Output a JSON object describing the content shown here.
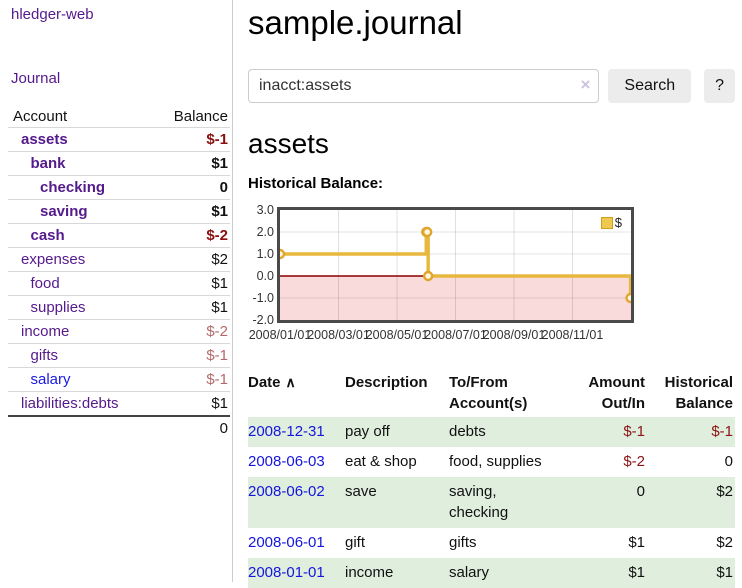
{
  "app": {
    "brand": "hledger-web",
    "nav_journal": "Journal"
  },
  "colors": {
    "link_purple": "#551a8b",
    "link_blue": "#1515dd",
    "negative_strong": "#8b0f0f",
    "negative_muted": "#b36a6a",
    "row_stripe_green": "#dfeedd",
    "chart_line_gold": "#e8b83e",
    "chart_zero_line": "#8b0000",
    "chart_negative_region": "#f9dbdb"
  },
  "sidebar": {
    "header": {
      "account": "Account",
      "balance": "Balance"
    },
    "accounts": [
      {
        "name": "assets",
        "balance": "$-1",
        "depth": 0,
        "bold": true,
        "neg": "strong"
      },
      {
        "name": "bank",
        "balance": "$1",
        "depth": 1,
        "bold": true,
        "neg": "none"
      },
      {
        "name": "checking",
        "balance": "0",
        "depth": 2,
        "bold": true,
        "neg": "none"
      },
      {
        "name": "saving",
        "balance": "$1",
        "depth": 2,
        "bold": true,
        "neg": "none"
      },
      {
        "name": "cash",
        "balance": "$-2",
        "depth": 1,
        "bold": true,
        "neg": "strong"
      },
      {
        "name": "expenses",
        "balance": "$2",
        "depth": 0,
        "bold": false,
        "neg": "none"
      },
      {
        "name": "food",
        "balance": "$1",
        "depth": 1,
        "bold": false,
        "neg": "none"
      },
      {
        "name": "supplies",
        "balance": "$1",
        "depth": 1,
        "bold": false,
        "neg": "none"
      },
      {
        "name": "income",
        "balance": "$-2",
        "depth": 0,
        "bold": false,
        "neg": "muted"
      },
      {
        "name": "gifts",
        "balance": "$-1",
        "depth": 1,
        "bold": false,
        "neg": "muted"
      },
      {
        "name": "salary",
        "balance": "$-1",
        "depth": 1,
        "bold": false,
        "neg": "muted",
        "blue": true
      },
      {
        "name": "liabilities:debts",
        "balance": "$1",
        "depth": 0,
        "bold": false,
        "neg": "none"
      }
    ],
    "total": "0"
  },
  "header": {
    "title": "sample.journal"
  },
  "search": {
    "value": "inacct:assets",
    "clear_icon": "×",
    "button": "Search",
    "help": "?"
  },
  "register": {
    "heading": "assets",
    "chart_label": "Historical Balance:"
  },
  "chart_data": {
    "type": "line",
    "step": true,
    "title": "Historical Balance",
    "series": [
      {
        "name": "$",
        "x": [
          "2008-01-01",
          "2008-06-01",
          "2008-06-02",
          "2008-06-03",
          "2008-12-31"
        ],
        "values": [
          1,
          2,
          2,
          0,
          -1
        ]
      }
    ],
    "x_tick_labels": [
      "2008/01/01",
      "2008/03/01",
      "2008/05/01",
      "2008/07/01",
      "2008/09/01",
      "2008/11/01"
    ],
    "x_tick_months": [
      0,
      2,
      4,
      6,
      8,
      10
    ],
    "y_tick_labels": [
      "3.0",
      "2.0",
      "1.0",
      "0.0",
      "-1.0",
      "-2.0"
    ],
    "y_ticks": [
      3,
      2,
      1,
      0,
      -1,
      -2
    ],
    "ylim": [
      -2,
      3
    ],
    "xlim_months": [
      0,
      12
    ],
    "grid": true,
    "legend": {
      "label": "$",
      "position": "top-right"
    },
    "negative_region_shaded": true
  },
  "table": {
    "headers": [
      {
        "label": "Date",
        "sort_icon": "∧",
        "align": "left"
      },
      {
        "label": "Description",
        "align": "left"
      },
      {
        "label": "To/From\nAccount(s)",
        "align": "left"
      },
      {
        "label": "Amount\nOut/In",
        "align": "right"
      },
      {
        "label": "Historical\nBalance",
        "align": "right"
      }
    ],
    "rows": [
      {
        "date": "2008-12-31",
        "description": "pay off",
        "accounts": "debts",
        "amount": "$-1",
        "amount_neg": true,
        "balance": "$-1",
        "balance_neg": true
      },
      {
        "date": "2008-06-03",
        "description": "eat & shop",
        "accounts": "food, supplies",
        "amount": "$-2",
        "amount_neg": true,
        "balance": "0",
        "balance_neg": false
      },
      {
        "date": "2008-06-02",
        "description": "save",
        "accounts": "saving,\nchecking",
        "amount": "0",
        "amount_neg": false,
        "balance": "$2",
        "balance_neg": false
      },
      {
        "date": "2008-06-01",
        "description": "gift",
        "accounts": "gifts",
        "amount": "$1",
        "amount_neg": false,
        "balance": "$2",
        "balance_neg": false
      },
      {
        "date": "2008-01-01",
        "description": "income",
        "accounts": "salary",
        "amount": "$1",
        "amount_neg": false,
        "balance": "$1",
        "balance_neg": false
      }
    ]
  }
}
